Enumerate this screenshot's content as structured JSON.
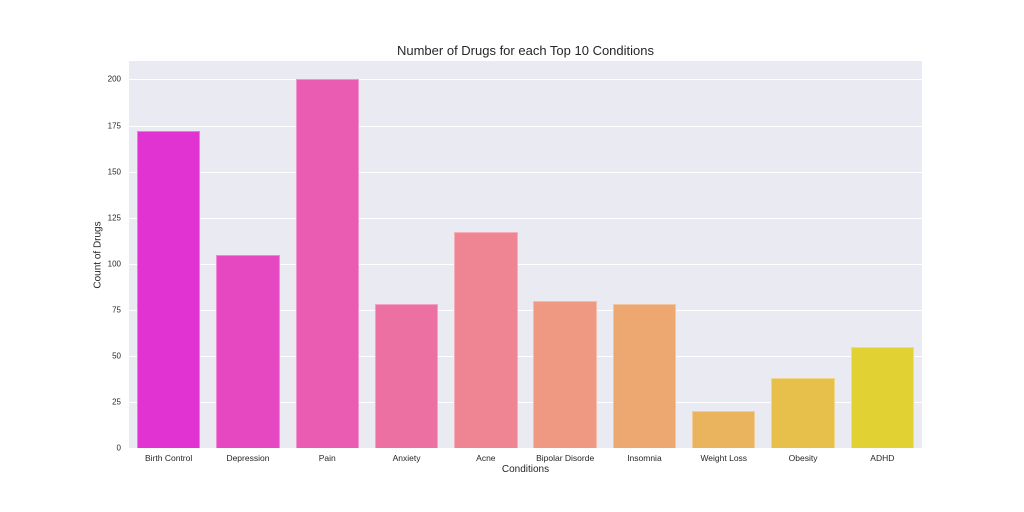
{
  "chart_data": {
    "type": "bar",
    "title": "Number of Drugs for each Top 10 Conditions",
    "xlabel": "Conditions",
    "ylabel": "Count of Drugs",
    "categories": [
      "Birth Control",
      "Depression",
      "Pain",
      "Anxiety",
      "Acne",
      "Bipolar Disorde",
      "Insomnia",
      "Weight Loss",
      "Obesity",
      "ADHD"
    ],
    "values": [
      172,
      105,
      200,
      78,
      117,
      80,
      78,
      20,
      38,
      55
    ],
    "colors": [
      "#E033D2",
      "#E648C1",
      "#E95CB1",
      "#EC70A1",
      "#EF8593",
      "#EF9882",
      "#EDA871",
      "#EAB45F",
      "#E7C04B",
      "#E2D132"
    ],
    "ylim": [
      0,
      210
    ],
    "yticks": [
      0,
      25,
      50,
      75,
      100,
      125,
      150,
      175,
      200
    ],
    "grid": true,
    "legend": null
  }
}
